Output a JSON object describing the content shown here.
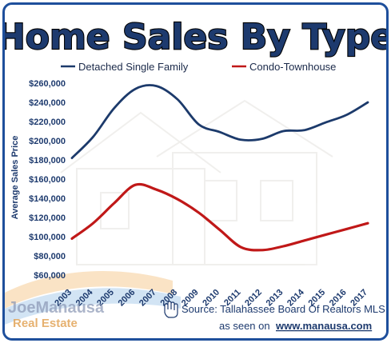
{
  "chart_data": {
    "type": "line",
    "title": "Home Sales By Type",
    "ylabel": "Average Sales Price",
    "xlabel": "",
    "ylim": [
      60000,
      260000
    ],
    "y_ticks": [
      "$60,000",
      "$80,000",
      "$100,000",
      "$120,000",
      "$140,000",
      "$160,000",
      "$180,000",
      "$200,000",
      "$220,000",
      "$240,000",
      "$260,000"
    ],
    "categories": [
      "2003",
      "2004",
      "2005",
      "2006",
      "2007",
      "2008",
      "2009",
      "2010",
      "2011",
      "2012",
      "2013",
      "2014",
      "2015",
      "2016",
      "2017"
    ],
    "legend": "top",
    "grid": false,
    "series": [
      {
        "name": "Detached Single Family",
        "color": "#1c3a6b",
        "values": [
          182000,
          204000,
          234000,
          254000,
          257000,
          243000,
          217000,
          209000,
          201000,
          202000,
          210000,
          211000,
          219000,
          227000,
          240000
        ]
      },
      {
        "name": "Condo-Townhouse",
        "color": "#c01818",
        "values": [
          98000,
          114000,
          135000,
          154000,
          149000,
          139000,
          125000,
          107000,
          89000,
          86000,
          90000,
          96000,
          102000,
          108000,
          114000
        ]
      }
    ]
  },
  "source": {
    "icon": "hand-pointer-icon",
    "line1": "Source: Tallahassee Board Of Realtors MLS",
    "line2_prefix": "as seen on",
    "line2_url": "www.manausa.com"
  },
  "watermark": {
    "name": "JoeManausa",
    "subtitle": "Real Estate"
  }
}
